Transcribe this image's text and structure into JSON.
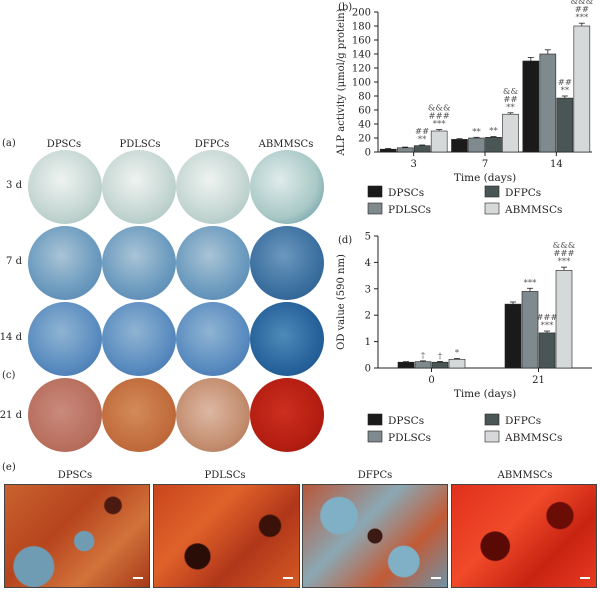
{
  "panels": {
    "a": "(a)",
    "b": "(b)",
    "c": "(c)",
    "d": "(d)",
    "e": "(e)"
  },
  "groups": [
    "DPSCs",
    "PDLSCs",
    "DFPCs",
    "ABMMSCs"
  ],
  "dish_rows": [
    "3 d",
    "7 d",
    "14 d",
    "21 d"
  ],
  "micro_titles": [
    "DPSCs",
    "PDLSCs",
    "DFPCs",
    "ABMMSCs"
  ],
  "colors": {
    "DPSCs": "#1a1a1a",
    "PDLSCs": "#7f8a8e",
    "DFPCs": "#4a5656",
    "ABMMSCs": "#d6d9da"
  },
  "chart_data": [
    {
      "type": "bar",
      "panel": "(b)",
      "ylabel": "ALP activity (μmol/g protein)",
      "xlabel": "Time (days)",
      "categories": [
        "3",
        "7",
        "14"
      ],
      "ylim": [
        0,
        200
      ],
      "yticks": [
        0,
        20,
        40,
        60,
        80,
        100,
        120,
        140,
        160,
        180,
        200
      ],
      "series": [
        {
          "name": "DPSCs",
          "values": [
            4,
            18,
            130
          ],
          "err": [
            1,
            1,
            5
          ]
        },
        {
          "name": "PDLSCs",
          "values": [
            6,
            20,
            140
          ],
          "err": [
            1,
            1,
            6
          ]
        },
        {
          "name": "DFPCs",
          "values": [
            9,
            21,
            77
          ],
          "err": [
            1,
            1,
            3
          ]
        },
        {
          "name": "ABMMSCs",
          "values": [
            30,
            54,
            180
          ],
          "err": [
            2,
            2,
            4
          ]
        }
      ],
      "annotations": [
        {
          "cat": 0,
          "series": 2,
          "lines": [
            "##",
            "**"
          ]
        },
        {
          "cat": 0,
          "series": 3,
          "lines": [
            "&&&",
            "###",
            "***"
          ]
        },
        {
          "cat": 1,
          "series": 1,
          "lines": [
            "**"
          ]
        },
        {
          "cat": 1,
          "series": 2,
          "lines": [
            "**"
          ]
        },
        {
          "cat": 1,
          "series": 3,
          "lines": [
            "&&",
            "##",
            "**"
          ]
        },
        {
          "cat": 2,
          "series": 2,
          "lines": [
            "##",
            "**"
          ]
        },
        {
          "cat": 2,
          "series": 3,
          "lines": [
            "&&&",
            "##",
            "***"
          ]
        }
      ]
    },
    {
      "type": "bar",
      "panel": "(d)",
      "ylabel": "OD value (590 nm)",
      "xlabel": "Time (days)",
      "categories": [
        "0",
        "21"
      ],
      "ylim": [
        0,
        5
      ],
      "yticks": [
        0,
        1,
        2,
        3,
        4,
        5
      ],
      "series": [
        {
          "name": "DPSCs",
          "values": [
            0.22,
            2.42
          ],
          "err": [
            0.02,
            0.08
          ]
        },
        {
          "name": "PDLSCs",
          "values": [
            0.24,
            2.9
          ],
          "err": [
            0.03,
            0.12
          ]
        },
        {
          "name": "DFPCs",
          "values": [
            0.22,
            1.33
          ],
          "err": [
            0.03,
            0.07
          ]
        },
        {
          "name": "ABMMSCs",
          "values": [
            0.33,
            3.7
          ],
          "err": [
            0.03,
            0.12
          ]
        }
      ],
      "annotations": [
        {
          "cat": 0,
          "series": 1,
          "lines": [
            "†"
          ]
        },
        {
          "cat": 0,
          "series": 2,
          "lines": [
            "†"
          ]
        },
        {
          "cat": 0,
          "series": 3,
          "lines": [
            "*"
          ]
        },
        {
          "cat": 1,
          "series": 1,
          "lines": [
            "***"
          ]
        },
        {
          "cat": 1,
          "series": 2,
          "lines": [
            "###",
            "***"
          ]
        },
        {
          "cat": 1,
          "series": 3,
          "lines": [
            "&&&",
            "###",
            "***"
          ]
        }
      ]
    }
  ]
}
